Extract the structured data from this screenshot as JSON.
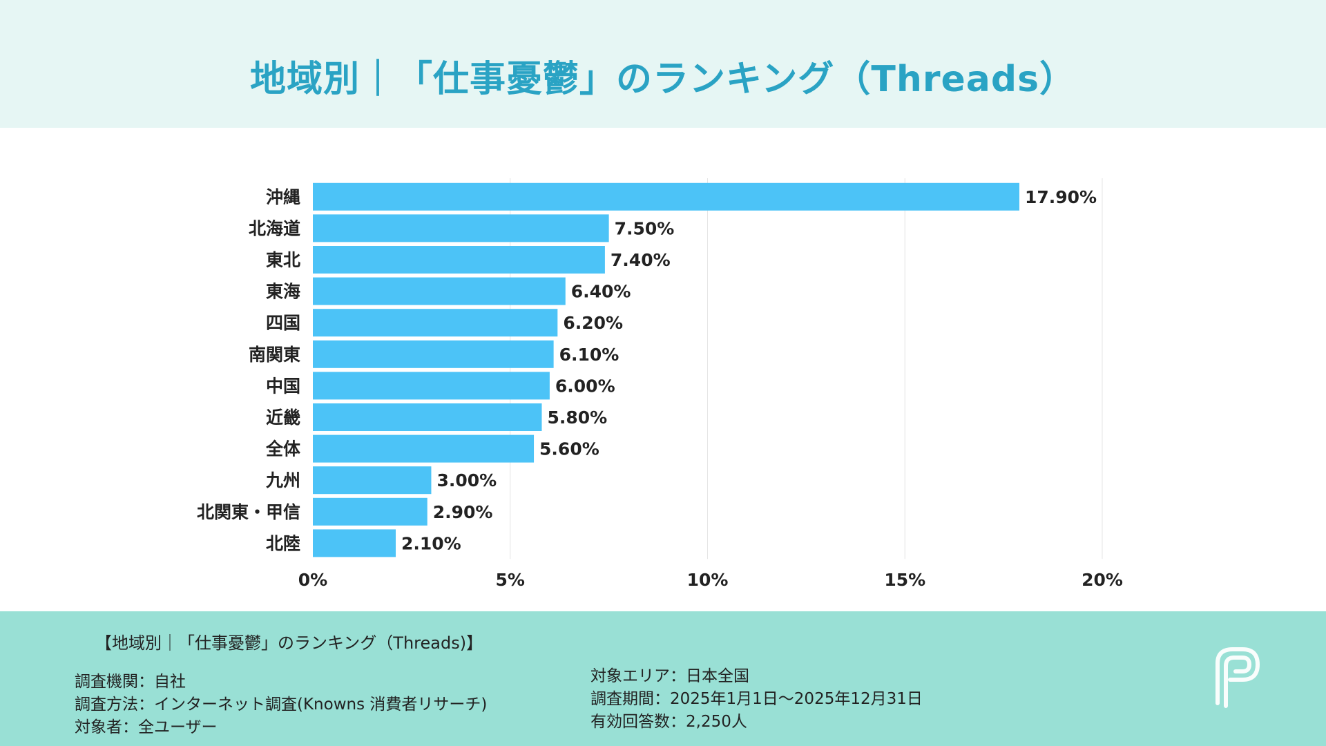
{
  "header": {
    "title": "地域別｜「仕事憂鬱」のランキング（Threads）"
  },
  "chart_data": {
    "type": "bar",
    "orientation": "horizontal",
    "categories": [
      "沖縄",
      "北海道",
      "東北",
      "東海",
      "四国",
      "南関東",
      "中国",
      "近畿",
      "全体",
      "九州",
      "北関東・甲信",
      "北陸"
    ],
    "values": [
      17.9,
      7.5,
      7.4,
      6.4,
      6.2,
      6.1,
      6.0,
      5.8,
      5.6,
      3.0,
      2.9,
      2.1
    ],
    "value_labels": [
      "17.90%",
      "7.50%",
      "7.40%",
      "6.40%",
      "6.20%",
      "6.10%",
      "6.00%",
      "5.80%",
      "5.60%",
      "3.00%",
      "2.90%",
      "2.10%"
    ],
    "xlim": [
      0,
      20
    ],
    "x_ticks": [
      0,
      5,
      10,
      15,
      20
    ],
    "x_tick_labels": [
      "0%",
      "5%",
      "10%",
      "15%",
      "20%"
    ],
    "grid": "vertical",
    "bar_color": "#4cc3f7"
  },
  "footer": {
    "title": "【地域別｜「仕事憂鬱」のランキング（Threads)】",
    "left_lines": [
      "調査機関：自社",
      "調査方法：インターネット調査(Knowns 消費者リサーチ)",
      "対象者：全ユーザー"
    ],
    "right_lines": [
      "対象エリア：日本全国",
      "調査期間：2025年1月1日～2025年12月31日",
      "有効回答数：2,250人"
    ]
  },
  "colors": {
    "header_bg": "#e6f6f4",
    "title": "#2aa3c4",
    "footer_bg": "#99e0d5",
    "bar": "#4cc3f7"
  },
  "logo": {
    "icon": "p-logo-icon"
  }
}
